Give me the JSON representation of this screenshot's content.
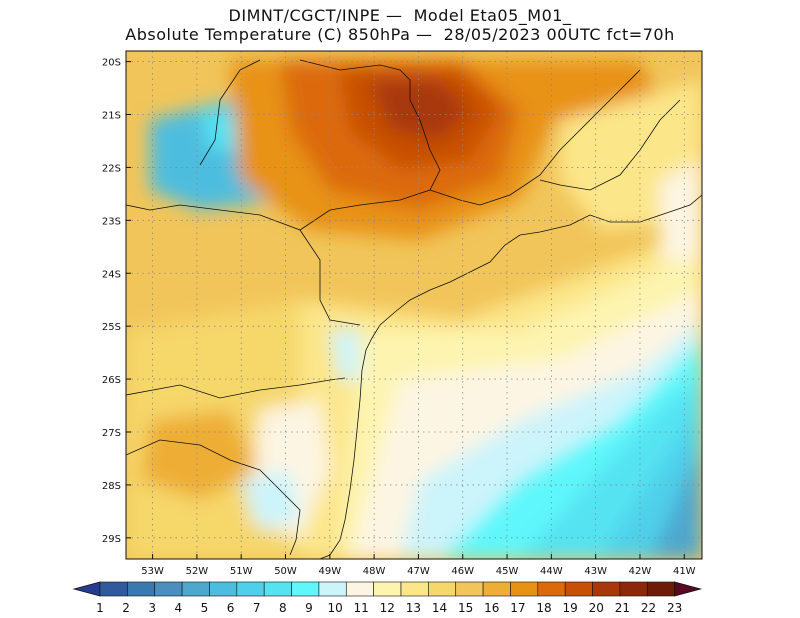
{
  "title": {
    "line1": "DIMNT/CGCT/INPE —  Model Eta05_M01_",
    "line2": "Absolute Temperature (C) 850hPa —  28/05/2023 00UTC fct=70h"
  },
  "map": {
    "lat_ticks": [
      "20S",
      "21S",
      "22S",
      "23S",
      "24S",
      "25S",
      "26S",
      "27S",
      "28S",
      "29S"
    ],
    "lon_ticks": [
      "53W",
      "52W",
      "51W",
      "50W",
      "49W",
      "48W",
      "47W",
      "46W",
      "45W",
      "44W",
      "43W",
      "42W",
      "41W"
    ],
    "lat_range": [
      -29.4,
      -19.8
    ],
    "lon_range": [
      -53.6,
      -40.6
    ],
    "grid": "dotted",
    "field": "temperature_850hPa"
  },
  "colorbar": {
    "labels": [
      "1",
      "2",
      "3",
      "4",
      "5",
      "6",
      "7",
      "8",
      "9",
      "10",
      "11",
      "12",
      "13",
      "14",
      "15",
      "16",
      "17",
      "18",
      "19",
      "20",
      "21",
      "22",
      "23"
    ],
    "colors": [
      "#263c8f",
      "#2f5a9e",
      "#3a78b0",
      "#4a8fc0",
      "#4ea7cf",
      "#4dbddf",
      "#4fd0ea",
      "#55e3f2",
      "#5ff7fb",
      "#ccf4fb",
      "#fdf5e3",
      "#fdf4b0",
      "#fce68a",
      "#f6d76a",
      "#f1c55a",
      "#eeae36",
      "#e89214",
      "#dc6a0a",
      "#c85006",
      "#a8380a",
      "#8a2809",
      "#6e1c08",
      "#580a20"
    ]
  }
}
